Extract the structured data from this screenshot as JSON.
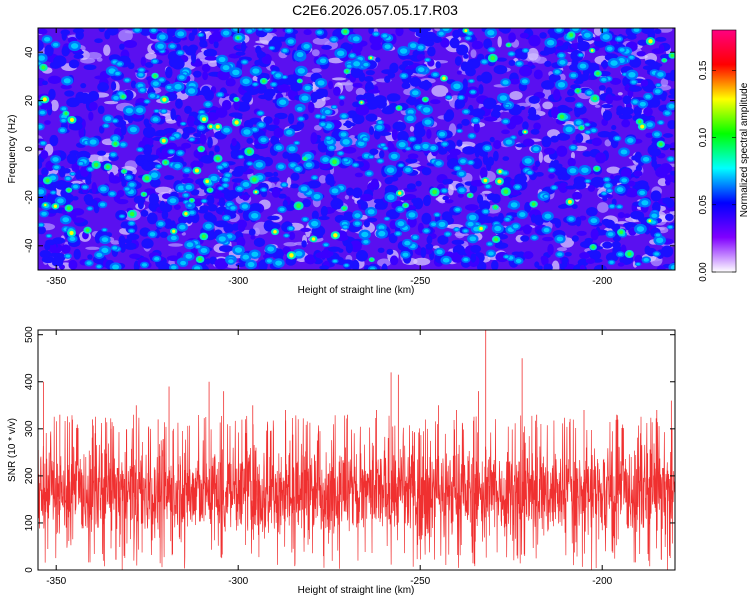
{
  "title": "C2E6.2026.057.05.17.R03",
  "colors": {
    "snr_line": "#f03030",
    "axis": "#000000"
  },
  "chart_data": [
    {
      "type": "heatmap",
      "name": "spectrogram",
      "xlabel": "Height of straight line (km)",
      "ylabel": "Frequency (Hz)",
      "xlim": [
        -355,
        -180
      ],
      "ylim": [
        -50,
        50
      ],
      "xticks": [
        -350,
        -300,
        -250,
        -200
      ],
      "yticks": [
        -40,
        -20,
        0,
        20,
        40
      ],
      "colorbar": {
        "label": "Normalized spectral amplitude",
        "range": [
          0,
          0.18
        ],
        "ticks": [
          "0.00",
          "0.05",
          "0.10",
          "0.15"
        ],
        "tick_values": [
          0,
          0.05,
          0.1,
          0.15
        ],
        "colormap": [
          "#ffffff",
          "#8000ff",
          "#0000ff",
          "#00ffff",
          "#00ff00",
          "#ffff00",
          "#ff0000",
          "#ff0080"
        ]
      },
      "typical_value": 0.03,
      "max_value": 0.17
    },
    {
      "type": "line",
      "name": "snr",
      "xlabel": "Height of straight line (km)",
      "ylabel": "SNR (10 * v/v)",
      "xlim": [
        -355,
        -180
      ],
      "ylim": [
        0,
        510
      ],
      "xticks": [
        -350,
        -300,
        -250,
        -200
      ],
      "yticks": [
        0,
        100,
        200,
        300,
        400,
        500
      ],
      "series": [
        {
          "mean": 130,
          "noise_band": [
            40,
            290
          ],
          "spikes": [
            {
              "x": -353.5,
              "y": 400
            },
            {
              "x": -349,
              "y": 330
            },
            {
              "x": -340,
              "y": 320
            },
            {
              "x": -335,
              "y": 300
            },
            {
              "x": -328,
              "y": 350
            },
            {
              "x": -322,
              "y": 320
            },
            {
              "x": -319,
              "y": 390
            },
            {
              "x": -308,
              "y": 400
            },
            {
              "x": -304,
              "y": 380
            },
            {
              "x": -296,
              "y": 350
            },
            {
              "x": -287,
              "y": 340
            },
            {
              "x": -270,
              "y": 330
            },
            {
              "x": -262,
              "y": 340
            },
            {
              "x": -258,
              "y": 420
            },
            {
              "x": -256,
              "y": 415
            },
            {
              "x": -245,
              "y": 350
            },
            {
              "x": -240,
              "y": 340
            },
            {
              "x": -234,
              "y": 380
            },
            {
              "x": -232,
              "y": 510
            },
            {
              "x": -222,
              "y": 450
            },
            {
              "x": -218,
              "y": 330
            },
            {
              "x": -205,
              "y": 340
            },
            {
              "x": -196,
              "y": 330
            },
            {
              "x": -185,
              "y": 340
            },
            {
              "x": -181,
              "y": 360
            }
          ]
        }
      ]
    }
  ]
}
